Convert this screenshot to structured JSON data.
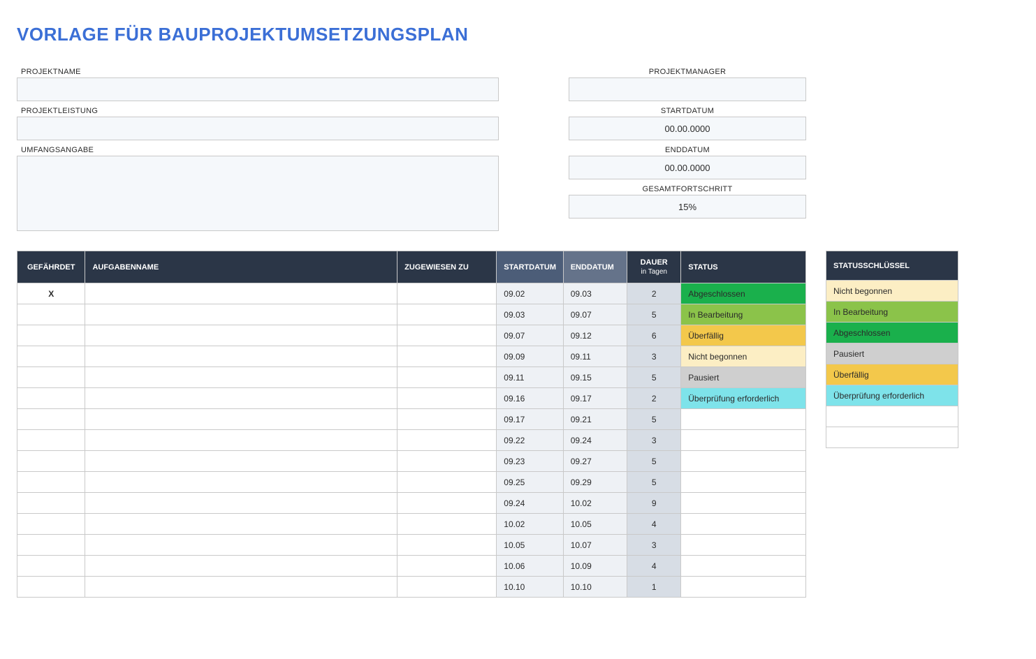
{
  "title": "VORLAGE FÜR BAUPROJEKTUMSETZUNGSPLAN",
  "meta": {
    "left": [
      {
        "label": "PROJEKTNAME",
        "value": "",
        "tall": false
      },
      {
        "label": "PROJEKTLEISTUNG",
        "value": "",
        "tall": false
      },
      {
        "label": "UMFANGSANGABE",
        "value": "",
        "tall": true
      }
    ],
    "right": [
      {
        "label": "PROJEKTMANAGER",
        "value": ""
      },
      {
        "label": "STARTDATUM",
        "value": "00.00.0000"
      },
      {
        "label": "ENDDATUM",
        "value": "00.00.0000"
      },
      {
        "label": "GESAMTFORTSCHRITT",
        "value": "15%"
      }
    ]
  },
  "columns": {
    "risk": "GEFÄHRDET",
    "name": "AUFGABENNAME",
    "assigned": "ZUGEWIESEN ZU",
    "start": "STARTDATUM",
    "end": "ENDDATUM",
    "duration": "DAUER",
    "duration_sub": "in Tagen",
    "status": "STATUS"
  },
  "status_colors": {
    "Abgeschlossen": "#1ab04c",
    "In Bearbeitung": "#8bc34a",
    "Überfällig": "#f3c84b",
    "Nicht begonnen": "#fceec4",
    "Pausiert": "#cfcfcf",
    "Überprüfung erforderlich": "#7ee3ea",
    "": "#ffffff"
  },
  "rows": [
    {
      "risk": "X",
      "name": "",
      "assigned": "",
      "start": "09.02",
      "end": "09.03",
      "duration": "2",
      "status": "Abgeschlossen"
    },
    {
      "risk": "",
      "name": "",
      "assigned": "",
      "start": "09.03",
      "end": "09.07",
      "duration": "5",
      "status": "In Bearbeitung"
    },
    {
      "risk": "",
      "name": "",
      "assigned": "",
      "start": "09.07",
      "end": "09.12",
      "duration": "6",
      "status": "Überfällig"
    },
    {
      "risk": "",
      "name": "",
      "assigned": "",
      "start": "09.09",
      "end": "09.11",
      "duration": "3",
      "status": "Nicht begonnen"
    },
    {
      "risk": "",
      "name": "",
      "assigned": "",
      "start": "09.11",
      "end": "09.15",
      "duration": "5",
      "status": "Pausiert"
    },
    {
      "risk": "",
      "name": "",
      "assigned": "",
      "start": "09.16",
      "end": "09.17",
      "duration": "2",
      "status": "Überprüfung erforderlich"
    },
    {
      "risk": "",
      "name": "",
      "assigned": "",
      "start": "09.17",
      "end": "09.21",
      "duration": "5",
      "status": ""
    },
    {
      "risk": "",
      "name": "",
      "assigned": "",
      "start": "09.22",
      "end": "09.24",
      "duration": "3",
      "status": ""
    },
    {
      "risk": "",
      "name": "",
      "assigned": "",
      "start": "09.23",
      "end": "09.27",
      "duration": "5",
      "status": ""
    },
    {
      "risk": "",
      "name": "",
      "assigned": "",
      "start": "09.25",
      "end": "09.29",
      "duration": "5",
      "status": ""
    },
    {
      "risk": "",
      "name": "",
      "assigned": "",
      "start": "09.24",
      "end": "10.02",
      "duration": "9",
      "status": ""
    },
    {
      "risk": "",
      "name": "",
      "assigned": "",
      "start": "10.02",
      "end": "10.05",
      "duration": "4",
      "status": ""
    },
    {
      "risk": "",
      "name": "",
      "assigned": "",
      "start": "10.05",
      "end": "10.07",
      "duration": "3",
      "status": ""
    },
    {
      "risk": "",
      "name": "",
      "assigned": "",
      "start": "10.06",
      "end": "10.09",
      "duration": "4",
      "status": ""
    },
    {
      "risk": "",
      "name": "",
      "assigned": "",
      "start": "10.10",
      "end": "10.10",
      "duration": "1",
      "status": ""
    }
  ],
  "key_header": "STATUSSCHLÜSSEL",
  "key_rows": [
    "Nicht begonnen",
    "In Bearbeitung",
    "Abgeschlossen",
    "Pausiert",
    "Überfällig",
    "Überprüfung erforderlich",
    "",
    ""
  ]
}
